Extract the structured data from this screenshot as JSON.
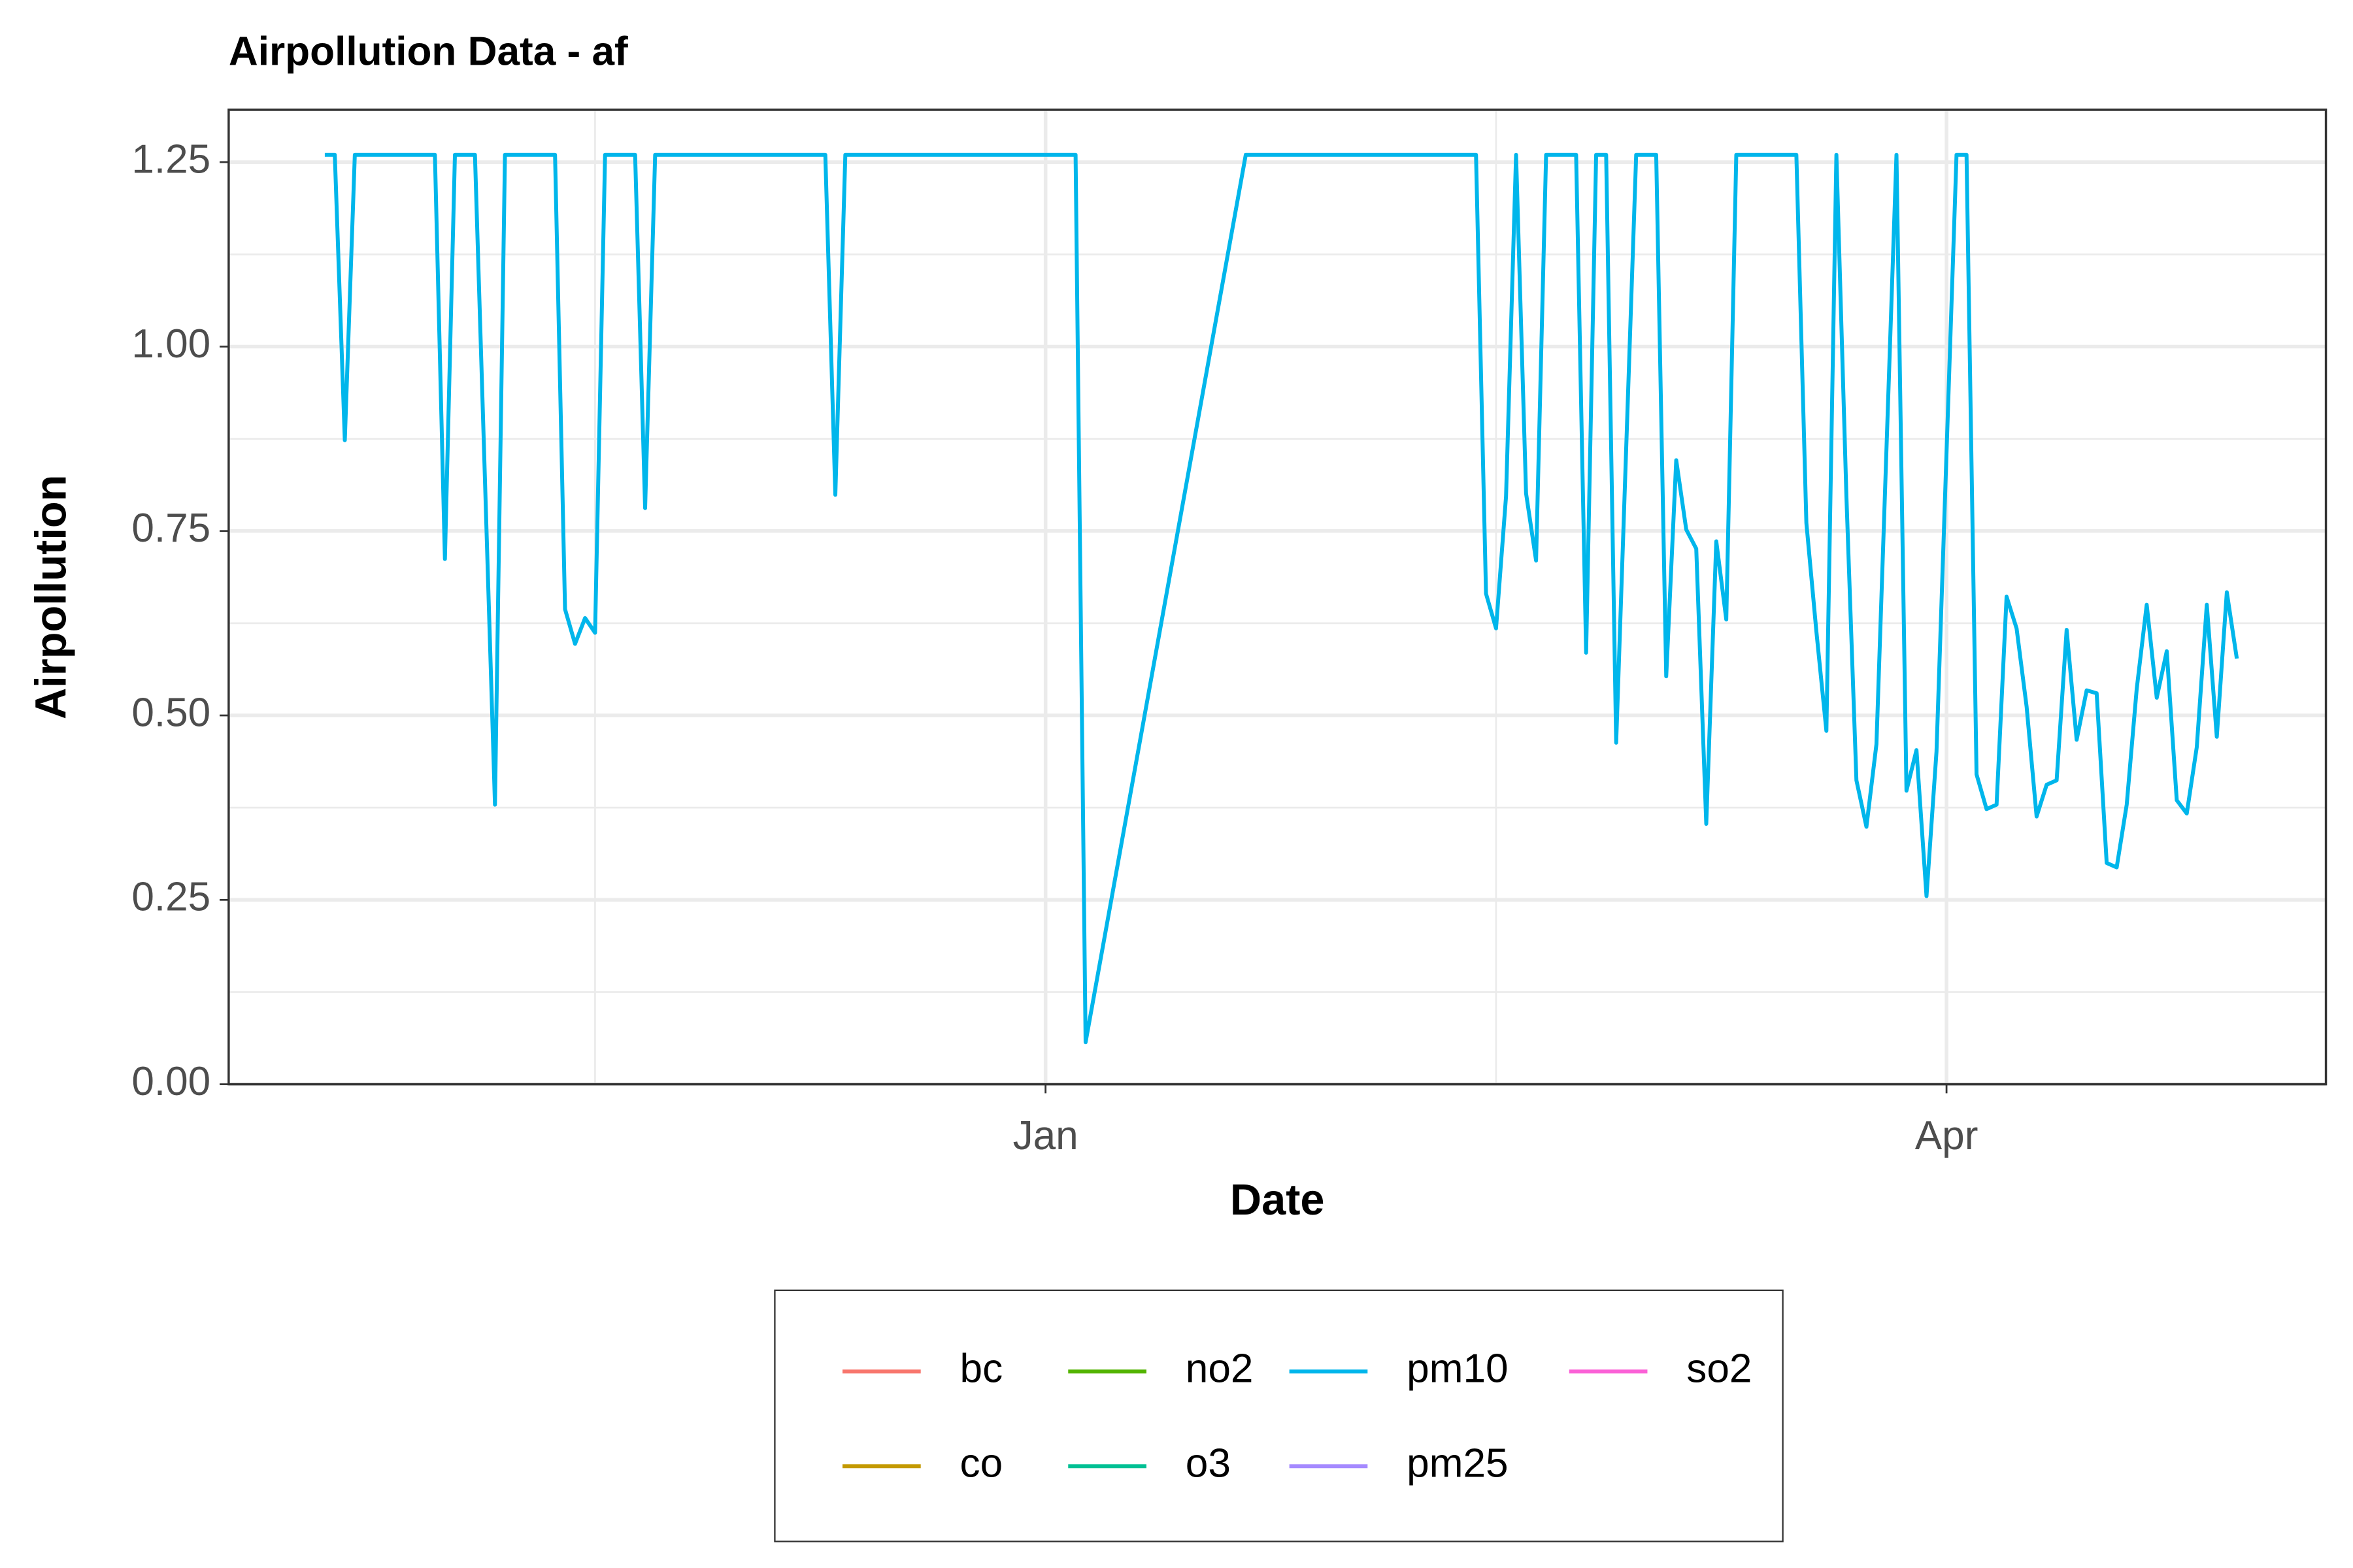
{
  "chart_data": {
    "type": "line",
    "title": "Airpollution Data - af",
    "x_label": "Date",
    "y_label": "Airpollution",
    "x": [
      -72,
      -71,
      -70,
      -69,
      -61,
      -60,
      -59,
      -57,
      -55,
      -54,
      -49,
      -48,
      -47,
      -46,
      -45,
      -44,
      -41,
      -40,
      -39,
      -22,
      -21,
      -20,
      3,
      4,
      20,
      43,
      44,
      45,
      46,
      47,
      48,
      49,
      50,
      53,
      54,
      55,
      56,
      57,
      59,
      61,
      62,
      63,
      64,
      65,
      66,
      67,
      68,
      69,
      75,
      76,
      77,
      78,
      79,
      80,
      81,
      82,
      83,
      85,
      86,
      87,
      88,
      89,
      91,
      92,
      93,
      94,
      95,
      96,
      97,
      98,
      99,
      100,
      101,
      102,
      103,
      104,
      105,
      106,
      107,
      108,
      109,
      110,
      111,
      112,
      113,
      114,
      115,
      116,
      117,
      118,
      119
    ],
    "series": [
      {
        "name": "pm10",
        "color": "#00B6EB",
        "values": [
          1.26,
          1.26,
          0.873,
          1.26,
          1.26,
          0.712,
          1.26,
          1.26,
          0.379,
          1.26,
          1.26,
          0.644,
          0.597,
          0.632,
          0.612,
          1.26,
          1.26,
          0.781,
          1.26,
          1.26,
          0.799,
          1.26,
          1.26,
          0.057,
          1.26,
          1.26,
          0.665,
          0.618,
          0.797,
          1.26,
          0.801,
          0.71,
          1.26,
          1.26,
          0.585,
          1.26,
          1.26,
          0.463,
          1.26,
          1.26,
          0.553,
          0.846,
          0.752,
          0.726,
          0.353,
          0.736,
          0.63,
          1.26,
          1.26,
          0.761,
          0.614,
          0.479,
          1.26,
          0.797,
          0.412,
          0.349,
          0.461,
          1.26,
          0.398,
          0.453,
          0.255,
          0.451,
          1.26,
          1.26,
          0.42,
          0.373,
          0.379,
          0.661,
          0.618,
          0.512,
          0.363,
          0.406,
          0.412,
          0.616,
          0.467,
          0.534,
          0.53,
          0.3,
          0.294,
          0.379,
          0.536,
          0.65,
          0.524,
          0.587,
          0.385,
          0.367,
          0.457,
          0.65,
          0.471,
          0.667,
          0.577
        ]
      }
    ],
    "legend": [
      {
        "name": "bc",
        "color": "#F8766D"
      },
      {
        "name": "co",
        "color": "#C49A00"
      },
      {
        "name": "no2",
        "color": "#53B400"
      },
      {
        "name": "o3",
        "color": "#00C094"
      },
      {
        "name": "pm10",
        "color": "#00B6EB"
      },
      {
        "name": "pm25",
        "color": "#A58AFF"
      },
      {
        "name": "so2",
        "color": "#FB61D7"
      }
    ],
    "xlim": [
      -81.6,
      127.9
    ],
    "xticks": [
      {
        "value": 0,
        "label": "Jan"
      },
      {
        "value": 90,
        "label": "Apr"
      }
    ],
    "ylim": [
      0,
      1.321
    ],
    "yticks": [
      {
        "value": 0,
        "label": "0.00"
      },
      {
        "value": 0.25,
        "label": "0.25"
      },
      {
        "value": 0.5,
        "label": "0.50"
      },
      {
        "value": 0.75,
        "label": "0.75"
      },
      {
        "value": 1,
        "label": "1.00"
      },
      {
        "value": 1.25,
        "label": "1.25"
      }
    ],
    "grid": true
  }
}
